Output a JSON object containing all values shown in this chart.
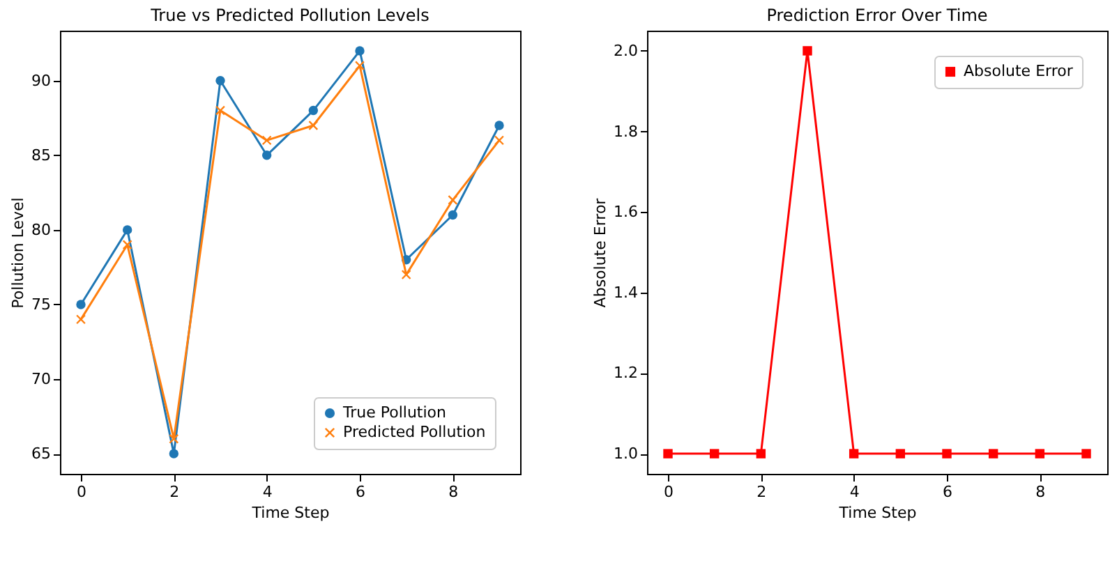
{
  "chart_data": [
    {
      "type": "line",
      "title": "True vs Predicted Pollution Levels",
      "xlabel": "Time Step",
      "ylabel": "Pollution Level",
      "x": [
        0,
        1,
        2,
        3,
        4,
        5,
        6,
        7,
        8,
        9
      ],
      "series": [
        {
          "name": "True Pollution",
          "color": "#1f77b4",
          "marker": "circle",
          "values": [
            75,
            80,
            65,
            90,
            85,
            88,
            92,
            78,
            81,
            87
          ]
        },
        {
          "name": "Predicted Pollution",
          "color": "#ff7f0e",
          "marker": "cross",
          "values": [
            74,
            79,
            66,
            88,
            86,
            87,
            91,
            77,
            82,
            86
          ]
        }
      ],
      "xlim": [
        -0.45,
        9.45
      ],
      "xticks": [
        0,
        2,
        4,
        6,
        8
      ],
      "ylim": [
        63.65,
        93.35
      ],
      "yticks": [
        65,
        70,
        75,
        80,
        85,
        90
      ],
      "legend": "bottom right",
      "line_style": "solid"
    },
    {
      "type": "line",
      "title": "Prediction Error Over Time",
      "xlabel": "Time Step",
      "ylabel": "Absolute Error",
      "x": [
        0,
        1,
        2,
        3,
        4,
        5,
        6,
        7,
        8,
        9
      ],
      "series": [
        {
          "name": "Absolute Error",
          "color": "#ff0000",
          "marker": "square",
          "values": [
            1,
            1,
            1,
            2,
            1,
            1,
            1,
            1,
            1,
            1
          ]
        }
      ],
      "xlim": [
        -0.45,
        9.45
      ],
      "xticks": [
        0,
        2,
        4,
        6,
        8
      ],
      "ylim": [
        0.95,
        2.05
      ],
      "yticks": [
        {
          "value": 1,
          "label": "1.0"
        },
        {
          "value": 1.2,
          "label": "1.2"
        },
        {
          "value": 1.4,
          "label": "1.4"
        },
        {
          "value": 1.6,
          "label": "1.6"
        },
        {
          "value": 1.8,
          "label": "1.8"
        },
        {
          "value": 2,
          "label": "2.0"
        }
      ],
      "legend": "top right",
      "line_style": "solid"
    }
  ]
}
